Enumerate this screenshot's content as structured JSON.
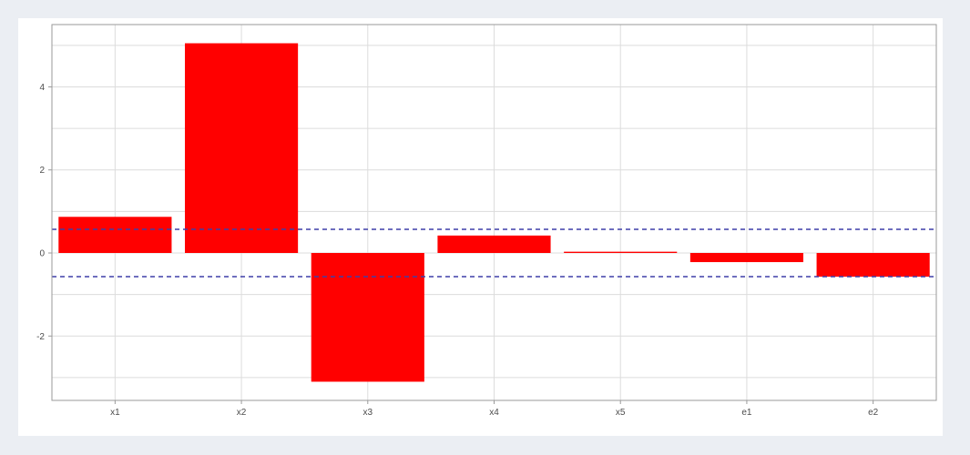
{
  "chart_data": {
    "type": "bar",
    "title": "",
    "xlabel": "",
    "ylabel": "",
    "categories": [
      "x1",
      "x2",
      "x3",
      "x4",
      "x5",
      "e1",
      "e2"
    ],
    "values": [
      0.87,
      5.05,
      -3.1,
      0.42,
      0.03,
      -0.22,
      -0.57
    ],
    "ylim": [
      -3.55,
      5.5
    ],
    "yticks": [
      -2,
      0,
      2,
      4
    ],
    "ytick_labels": [
      "-2",
      "0",
      "2",
      "4"
    ],
    "reference_lines": [
      0.57,
      -0.57
    ],
    "grid": true,
    "colors": {
      "bar": "#ff0000",
      "reference_line": "#3f3fa8",
      "grid": "#dcdcdc",
      "frame": "#9a9a9a"
    }
  }
}
